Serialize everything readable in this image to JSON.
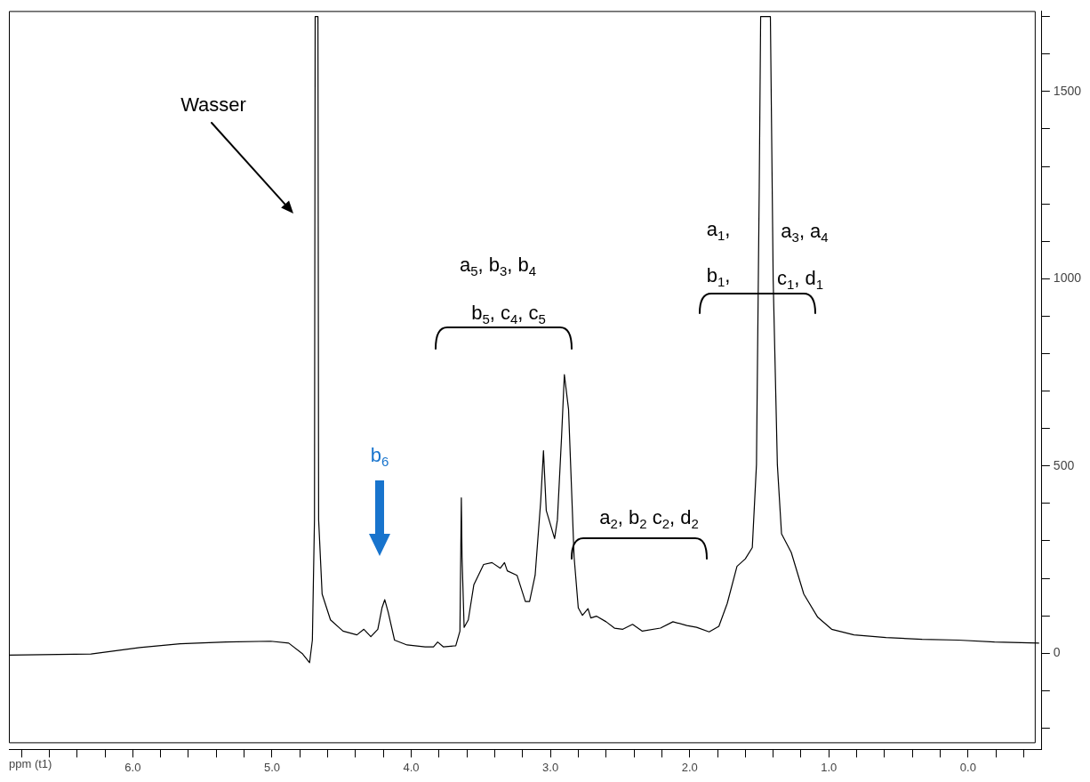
{
  "chart_data": {
    "type": "line",
    "xlabel": "ppm (t1)",
    "x": [
      6.89,
      6.3,
      5.95,
      5.66,
      5.33,
      5.01,
      4.88,
      4.78,
      4.73,
      4.71,
      4.695,
      4.69,
      4.67,
      4.665,
      4.64,
      4.58,
      4.49,
      4.39,
      4.34,
      4.29,
      4.24,
      4.21,
      4.19,
      4.165,
      4.12,
      4.03,
      3.9,
      3.84,
      3.81,
      3.77,
      3.68,
      3.65,
      3.64,
      3.635,
      3.62,
      3.59,
      3.55,
      3.48,
      3.42,
      3.36,
      3.33,
      3.31,
      3.24,
      3.18,
      3.15,
      3.11,
      3.07,
      3.05,
      3.03,
      2.97,
      2.95,
      2.92,
      2.9,
      2.87,
      2.83,
      2.8,
      2.77,
      2.73,
      2.71,
      2.67,
      2.6,
      2.54,
      2.48,
      2.41,
      2.34,
      2.21,
      2.12,
      2.02,
      1.95,
      1.86,
      1.79,
      1.73,
      1.66,
      1.6,
      1.55,
      1.52,
      1.5,
      1.49,
      1.42,
      1.4,
      1.37,
      1.34,
      1.27,
      1.18,
      1.08,
      0.98,
      0.82,
      0.59,
      0.33,
      0.07,
      -0.19,
      -0.51
    ],
    "series": [
      {
        "color": "#000000",
        "values": [
          -5,
          -2,
          15,
          25,
          30,
          32,
          27,
          -2,
          -25,
          35,
          356,
          1700,
          1700,
          356,
          158,
          89,
          59,
          49,
          64,
          44,
          64,
          121,
          143,
          109,
          35,
          22,
          17,
          17,
          30,
          17,
          20,
          59,
          415,
          257,
          69,
          89,
          183,
          237,
          242,
          227,
          242,
          220,
          208,
          138,
          138,
          208,
          405,
          541,
          381,
          306,
          356,
          578,
          744,
          652,
          257,
          121,
          101,
          119,
          94,
          99,
          84,
          67,
          64,
          77,
          59,
          67,
          84,
          74,
          69,
          57,
          72,
          133,
          232,
          252,
          282,
          504,
          1246,
          1700,
          1700,
          998,
          504,
          319,
          269,
          158,
          96,
          64,
          49,
          42,
          37,
          35,
          30,
          27
        ]
      }
    ],
    "xlim": [
      6.89,
      -0.53
    ],
    "xticks": [
      {
        "value": 6.8,
        "label": null
      },
      {
        "value": 6.6,
        "label": null
      },
      {
        "value": 6.4,
        "label": null
      },
      {
        "value": 6.2,
        "label": null
      },
      {
        "value": 6,
        "label": "6.0"
      },
      {
        "value": 5.8,
        "label": null
      },
      {
        "value": 5.6,
        "label": null
      },
      {
        "value": 5.4,
        "label": null
      },
      {
        "value": 5.2,
        "label": null
      },
      {
        "value": 5,
        "label": "5.0"
      },
      {
        "value": 4.8,
        "label": null
      },
      {
        "value": 4.6,
        "label": null
      },
      {
        "value": 4.4,
        "label": null
      },
      {
        "value": 4.2,
        "label": null
      },
      {
        "value": 4,
        "label": "4.0"
      },
      {
        "value": 3.8,
        "label": null
      },
      {
        "value": 3.6,
        "label": null
      },
      {
        "value": 3.4,
        "label": null
      },
      {
        "value": 3.2,
        "label": null
      },
      {
        "value": 3,
        "label": "3.0"
      },
      {
        "value": 2.8,
        "label": null
      },
      {
        "value": 2.6,
        "label": null
      },
      {
        "value": 2.4,
        "label": null
      },
      {
        "value": 2.2,
        "label": null
      },
      {
        "value": 2,
        "label": "2.0"
      },
      {
        "value": 1.8,
        "label": null
      },
      {
        "value": 1.6,
        "label": null
      },
      {
        "value": 1.4,
        "label": null
      },
      {
        "value": 1.2,
        "label": null
      },
      {
        "value": 1,
        "label": "1.0"
      },
      {
        "value": 0.8,
        "label": null
      },
      {
        "value": 0.6,
        "label": null
      },
      {
        "value": 0.4,
        "label": null
      },
      {
        "value": 0.2,
        "label": null
      },
      {
        "value": 0,
        "label": "0.0"
      },
      {
        "value": -0.2,
        "label": null
      },
      {
        "value": -0.4,
        "label": null
      }
    ],
    "ylim": [
      -257,
      1715
    ],
    "yticks": [
      {
        "value": -200,
        "label": null
      },
      {
        "value": -100,
        "label": null
      },
      0,
      {
        "value": 100,
        "label": null
      },
      {
        "value": 200,
        "label": null
      },
      {
        "value": 300,
        "label": null
      },
      {
        "value": 400,
        "label": null
      },
      500,
      {
        "value": 600,
        "label": null
      },
      {
        "value": 700,
        "label": null
      },
      {
        "value": 800,
        "label": null
      },
      {
        "value": 900,
        "label": null
      },
      1000,
      {
        "value": 1100,
        "label": null
      },
      {
        "value": 1200,
        "label": null
      },
      {
        "value": 1300,
        "label": null
      },
      {
        "value": 1400,
        "label": null
      },
      1500,
      {
        "value": 1600,
        "label": null
      },
      {
        "value": 1700,
        "label": null
      }
    ],
    "grid": false,
    "legend": false,
    "marker": "none",
    "line_style": "solid",
    "annotations": [
      "Wasser",
      "b$_{6}$",
      "a$_{5}$, b$_{3}$, b$_{4}$",
      "b$_{5}$, c$_{4}$, c$_{5}$",
      "a$_{2}$, b$_{2}$ c$_{2}$, d$_{2}$",
      "a$_{1}$,",
      "b$_{1}$,",
      "a$_{3}$, a$_{4}$",
      "c$_{1}$, d$_{1}$"
    ]
  }
}
